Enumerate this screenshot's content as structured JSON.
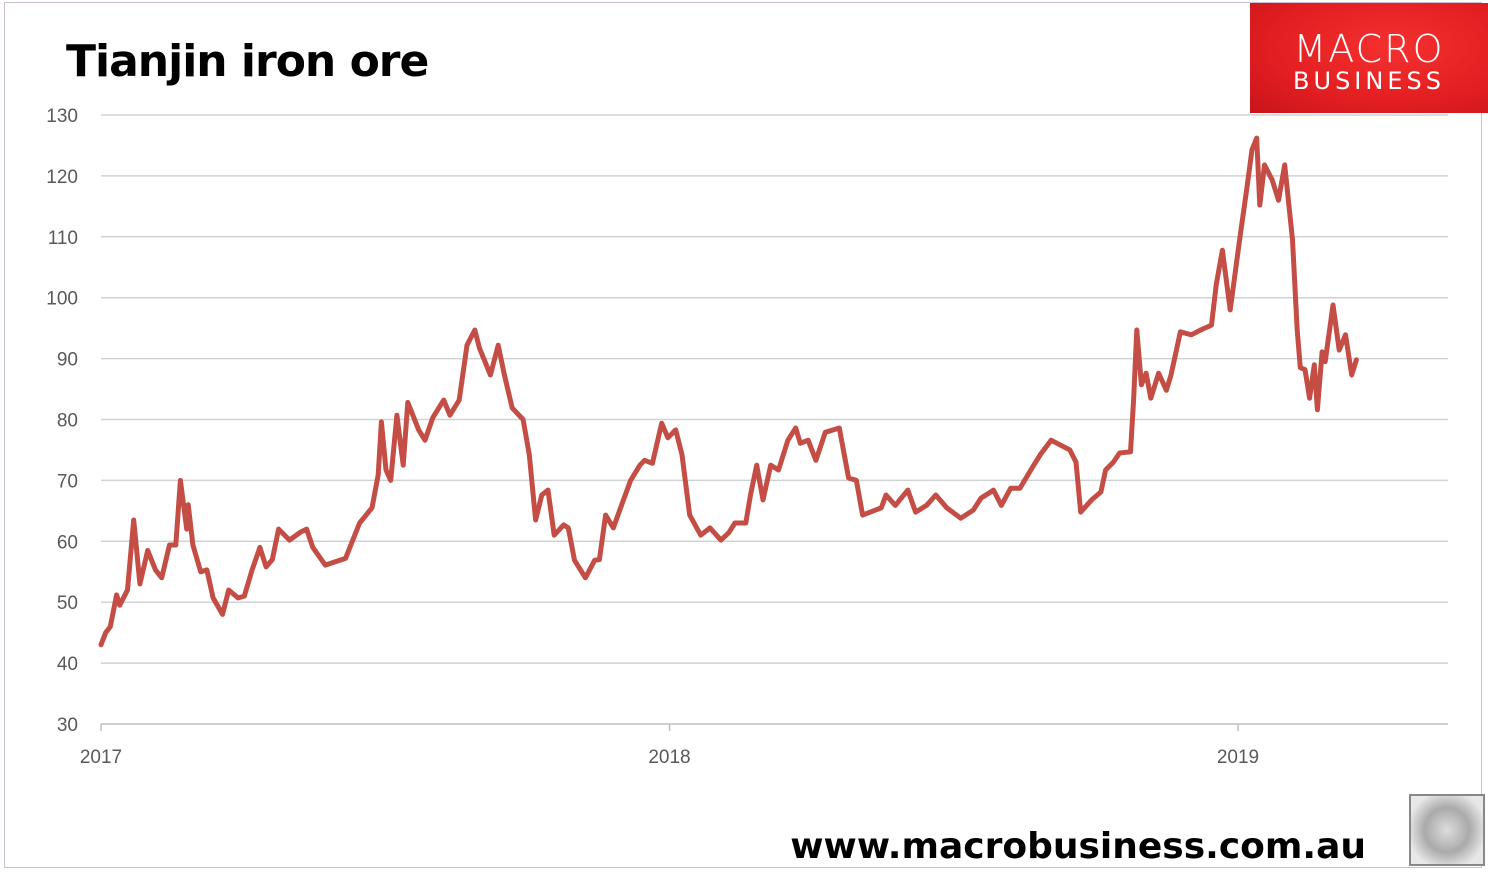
{
  "chart_data": {
    "type": "line",
    "title": "Tianjin iron ore",
    "xlabel": "",
    "ylabel": "",
    "ylim": [
      30,
      130
    ],
    "yticks": [
      "30",
      "40",
      "50",
      "60",
      "70",
      "80",
      "90",
      "100",
      "110",
      "120",
      "130"
    ],
    "xticks": [
      "2017",
      "2018",
      "2019"
    ],
    "xlim": [
      "2017-01-01",
      "2019-05-15"
    ],
    "grid": true,
    "line_color": "#c44e45",
    "series": [
      {
        "x": [
          "2017-01-01",
          "2017-01-04",
          "2017-01-07",
          "2017-01-11",
          "2017-01-13",
          "2017-01-18",
          "2017-01-22",
          "2017-01-26",
          "2017-01-31",
          "2017-02-05",
          "2017-02-09",
          "2017-02-14",
          "2017-02-18",
          "2017-02-21",
          "2017-02-25",
          "2017-02-26",
          "2017-03-01",
          "2017-03-06",
          "2017-03-10",
          "2017-03-14",
          "2017-03-20",
          "2017-03-24",
          "2017-03-30",
          "2017-04-03",
          "2017-04-08",
          "2017-04-13",
          "2017-04-17",
          "2017-04-21",
          "2017-04-25",
          "2017-05-02",
          "2017-05-09",
          "2017-05-13",
          "2017-05-17",
          "2017-05-25",
          "2017-05-31",
          "2017-06-07",
          "2017-06-16",
          "2017-06-24",
          "2017-06-28",
          "2017-06-30",
          "2017-07-03",
          "2017-07-06",
          "2017-07-10",
          "2017-07-14",
          "2017-07-17",
          "2017-07-24",
          "2017-07-28",
          "2017-08-02",
          "2017-08-09",
          "2017-08-13",
          "2017-08-19",
          "2017-08-24",
          "2017-08-29",
          "2017-09-01",
          "2017-09-08",
          "2017-09-13",
          "2017-09-17",
          "2017-09-22",
          "2017-09-29",
          "2017-10-03",
          "2017-10-07",
          "2017-10-11",
          "2017-10-15",
          "2017-10-19",
          "2017-10-25",
          "2017-10-28",
          "2017-11-01",
          "2017-11-08",
          "2017-11-14",
          "2017-11-17",
          "2017-11-21",
          "2017-11-26",
          "2017-11-30",
          "2017-12-07",
          "2017-12-13",
          "2017-12-16",
          "2017-12-21",
          "2017-12-27",
          "2017-12-31",
          "2018-01-05",
          "2018-01-09",
          "2018-01-14",
          "2018-01-21",
          "2018-01-27",
          "2018-02-03",
          "2018-02-08",
          "2018-02-12",
          "2018-02-19",
          "2018-02-22",
          "2018-02-26",
          "2018-03-02",
          "2018-03-07",
          "2018-03-12",
          "2018-03-18",
          "2018-03-23",
          "2018-03-26",
          "2018-03-31",
          "2018-04-05",
          "2018-04-11",
          "2018-04-20",
          "2018-04-26",
          "2018-05-01",
          "2018-05-05",
          "2018-05-10",
          "2018-05-17",
          "2018-05-20",
          "2018-05-26",
          "2018-06-03",
          "2018-06-08",
          "2018-06-15",
          "2018-06-21",
          "2018-06-28",
          "2018-07-07",
          "2018-07-15",
          "2018-07-20",
          "2018-07-28",
          "2018-08-02",
          "2018-08-08",
          "2018-08-14",
          "2018-08-21",
          "2018-08-27",
          "2018-09-03",
          "2018-09-09",
          "2018-09-15",
          "2018-09-19",
          "2018-09-22",
          "2018-09-29",
          "2018-10-05",
          "2018-10-08",
          "2018-10-13",
          "2018-10-17",
          "2018-10-24",
          "2018-10-26",
          "2018-10-28",
          "2018-10-31",
          "2018-11-03",
          "2018-11-06",
          "2018-11-11",
          "2018-11-16",
          "2018-11-19",
          "2018-11-25",
          "2018-12-02",
          "2018-12-08",
          "2018-12-15",
          "2018-12-18",
          "2018-12-22",
          "2018-12-27",
          "2019-01-02",
          "2019-01-07",
          "2019-01-10",
          "2019-01-13",
          "2019-01-15",
          "2019-01-18",
          "2019-01-23",
          "2019-01-27",
          "2019-01-31",
          "2019-02-05",
          "2019-02-08",
          "2019-02-10",
          "2019-02-13",
          "2019-02-16",
          "2019-02-19",
          "2019-02-21",
          "2019-02-24",
          "2019-02-26",
          "2019-03-03",
          "2019-03-07",
          "2019-03-11",
          "2019-03-15",
          "2019-03-18"
        ],
        "y": [
          43,
          45,
          46,
          51.2,
          49.5,
          52,
          63.5,
          53,
          58.5,
          55.3,
          54,
          59.4,
          59.4,
          70,
          62,
          66,
          59.4,
          55,
          55.3,
          50.7,
          48,
          52,
          50.7,
          51,
          55.3,
          59,
          55.8,
          57,
          62,
          60.2,
          61.5,
          62,
          59,
          56.1,
          56.6,
          57.2,
          63,
          65.5,
          70.9,
          79.6,
          71.7,
          70,
          80.7,
          72.5,
          82.8,
          78.3,
          76.6,
          80.3,
          83.2,
          80.7,
          83.2,
          92.2,
          94.7,
          91.7,
          87.3,
          92.2,
          87.3,
          81.9,
          80,
          74.2,
          63.5,
          67.6,
          68.4,
          61,
          62.7,
          62.2,
          56.9,
          54,
          56.9,
          57,
          64.3,
          62.2,
          65.1,
          70,
          72.5,
          73.3,
          72.8,
          79.4,
          77,
          78.3,
          74.2,
          64.3,
          61,
          62.2,
          60.2,
          61.4,
          63,
          63,
          67.6,
          72.5,
          66.8,
          72.5,
          71.7,
          76.6,
          78.6,
          76.1,
          76.6,
          73.3,
          77.9,
          78.6,
          70.4,
          70,
          64.3,
          64.8,
          65.5,
          67.6,
          65.9,
          68.4,
          64.8,
          65.9,
          67.6,
          65.5,
          63.8,
          65.1,
          67.1,
          68.4,
          65.9,
          68.7,
          68.7,
          71.7,
          74.2,
          76.6,
          75.8,
          75,
          73,
          64.8,
          66.8,
          68.1,
          71.7,
          73,
          74.5,
          74.7,
          83.2,
          94.7,
          85.7,
          87.6,
          83.5,
          87.6,
          84.8,
          87.3,
          94.4,
          93.9,
          94.7,
          95.5,
          102.1,
          107.8,
          98,
          109.5,
          118.5,
          124.3,
          126.2,
          115.2,
          121.8,
          119.3,
          116,
          121.8,
          109.5,
          94.7,
          88.5,
          88.2,
          83.5,
          89,
          81.6,
          91.1,
          89.5,
          98.8,
          91.4,
          93.9,
          87.3,
          89.8
        ]
      }
    ]
  },
  "logo": {
    "line1": "MACRO",
    "line2": "BUSINESS"
  },
  "footer": {
    "url": "www.macrobusiness.com.au"
  }
}
